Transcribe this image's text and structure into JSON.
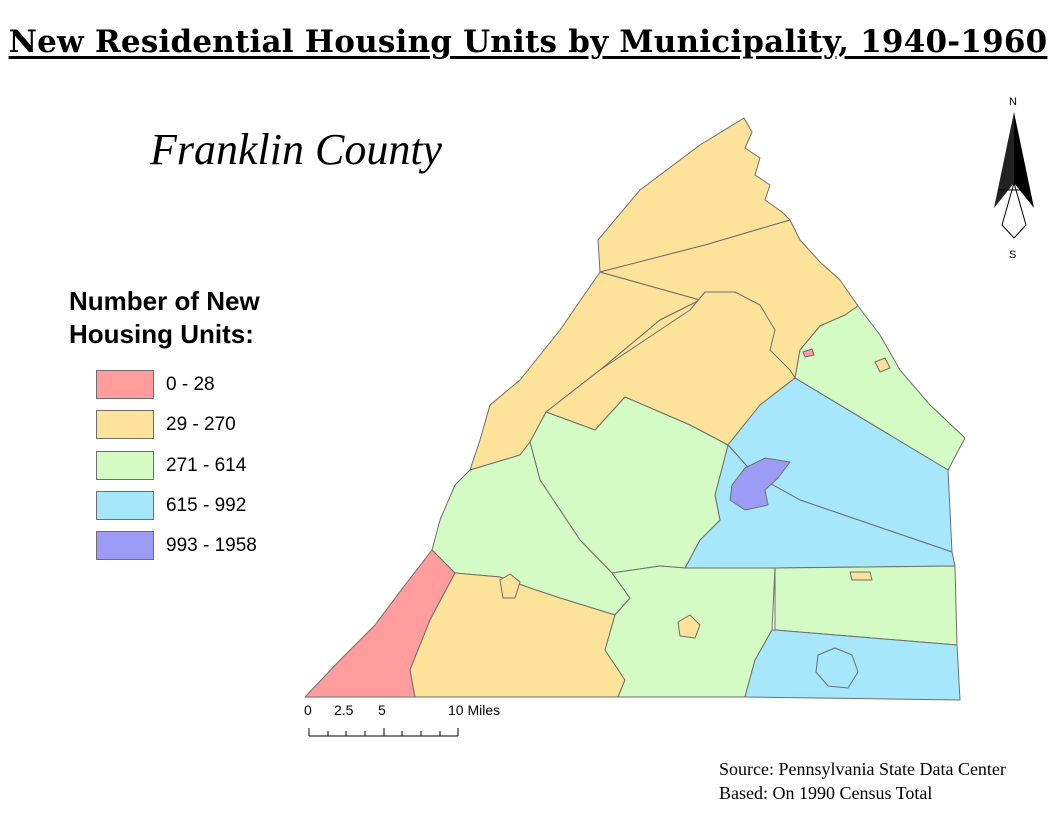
{
  "title": "New Residential Housing Units by Municipality, 1940-1960",
  "county_name": "Franklin County",
  "legend": {
    "title_line1": "Number of New",
    "title_line2": "Housing Units:",
    "classes": [
      {
        "label": "0 - 28",
        "color": "#ff9c9c"
      },
      {
        "label": "29 - 270",
        "color": "#fde39a"
      },
      {
        "label": "271 - 614",
        "color": "#d3fbc3"
      },
      {
        "label": "615 - 992",
        "color": "#a7e7fb"
      },
      {
        "label": "993 - 1958",
        "color": "#9c9cf7"
      }
    ]
  },
  "compass": {
    "north": "N",
    "south": "S"
  },
  "scale_bar": {
    "labels": [
      "0",
      "2.5",
      "5",
      "10 Miles"
    ]
  },
  "source": {
    "line1": "Source: Pennsylvania State Data Center",
    "line2": "Based: On 1990 Census Total"
  },
  "colors": {
    "class_0_28": "#ff9c9c",
    "class_29_270": "#fde39a",
    "class_271_614": "#d3fbc3",
    "class_615_992": "#a7e7fb",
    "class_993_1958": "#9c9cf7",
    "boundary": "#6e6e6e"
  }
}
